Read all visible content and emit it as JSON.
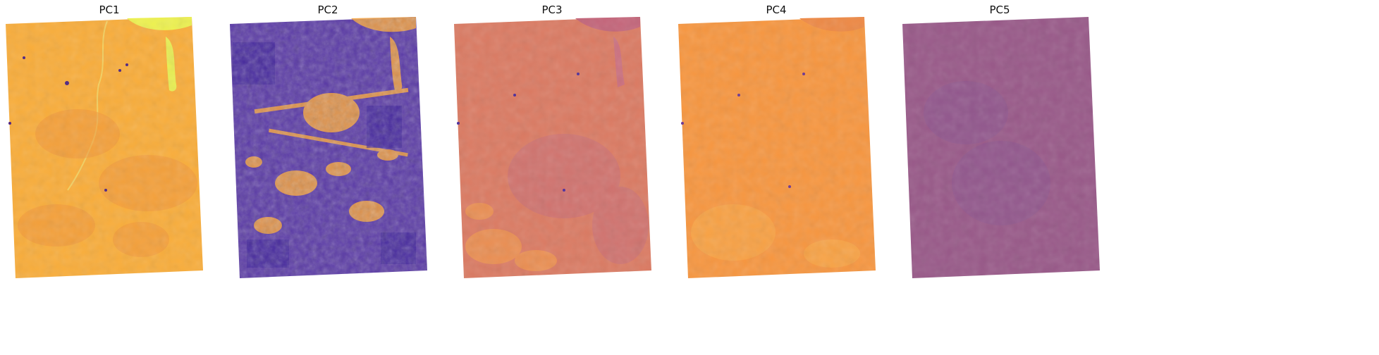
{
  "figure": {
    "panels": [
      {
        "title": "PC1",
        "base": "#f9ad3a",
        "dark": "#2b0d78",
        "light": "#f2e74a",
        "mid": "#f29a39",
        "texture": "low"
      },
      {
        "title": "PC2",
        "base": "#5a3aa6",
        "dark": "#3a1f9a",
        "light": "#f5a23d",
        "mid": "#8a5cb0",
        "texture": "high"
      },
      {
        "title": "PC3",
        "base": "#db7a62",
        "dark": "#4a2a9a",
        "light": "#f7a046",
        "mid": "#c46a7e",
        "texture": "medium"
      },
      {
        "title": "PC4",
        "base": "#f7963f",
        "dark": "#6a3290",
        "light": "#f9ad4a",
        "mid": "#ee8945",
        "texture": "low"
      },
      {
        "title": "PC5",
        "base": "#985888",
        "dark": "#5a3aa0",
        "light": "#a76088",
        "mid": "#8b5690",
        "texture": "minimal"
      }
    ]
  }
}
